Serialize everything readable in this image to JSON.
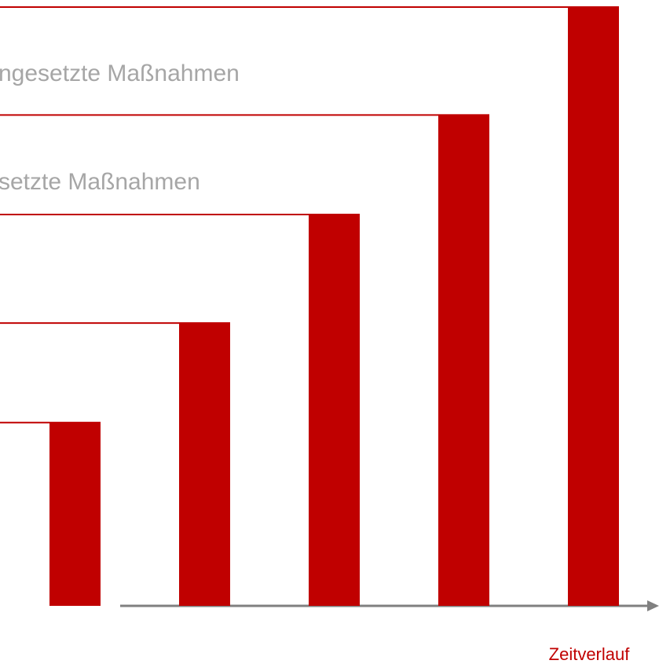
{
  "chart_data": {
    "type": "bar",
    "values": [
      30.7,
      47.3,
      65.4,
      82.0,
      100
    ],
    "color": "#c00000",
    "ylim": [
      0,
      100
    ],
    "annotations": [
      "ngesetzte Maßnahmen",
      "setzte Maßnahmen"
    ],
    "x_label": "Zeitverlauf"
  }
}
